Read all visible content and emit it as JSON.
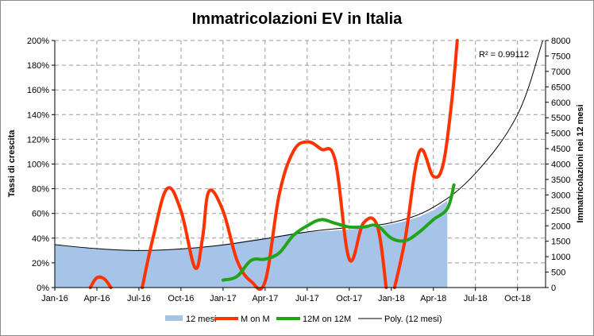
{
  "chart_data": {
    "type": "line",
    "title": "Immatricolazioni EV in Italia",
    "ylabel_left": "Tassi di crescita",
    "ylabel_right": "Immatricolazioni nei 12 mesi",
    "x_ticks": [
      "Jan-16",
      "Apr-16",
      "Jul-16",
      "Oct-16",
      "Jan-17",
      "Apr-17",
      "Jul-17",
      "Oct-17",
      "Jan-18",
      "Apr-18",
      "Jul-18",
      "Oct-18"
    ],
    "xlim": [
      "2016-01",
      "2018-12"
    ],
    "y_left_ticks": [
      "0%",
      "20%",
      "40%",
      "60%",
      "80%",
      "100%",
      "120%",
      "140%",
      "160%",
      "180%",
      "200%"
    ],
    "ylim_left": [
      0,
      200
    ],
    "y_right_ticks": [
      "0",
      "500",
      "1000",
      "1500",
      "2000",
      "2500",
      "3000",
      "3500",
      "4000",
      "4500",
      "5000",
      "5500",
      "6000",
      "6500",
      "7000",
      "7500",
      "8000"
    ],
    "ylim_right": [
      0,
      8000
    ],
    "grid": true,
    "legend_position": "bottom",
    "annotation": "R² = 0.99112",
    "series": [
      {
        "name": "12 mesi",
        "kind": "area",
        "axis": "right",
        "color": "#a6c4e8",
        "x": [
          "2016-01",
          "2016-02",
          "2016-03",
          "2016-04",
          "2016-05",
          "2016-06",
          "2016-07",
          "2016-08",
          "2016-09",
          "2016-10",
          "2016-11",
          "2016-12",
          "2017-01",
          "2017-02",
          "2017-03",
          "2017-04",
          "2017-05",
          "2017-06",
          "2017-07",
          "2017-08",
          "2017-09",
          "2017-10",
          "2017-11",
          "2017-12",
          "2018-01",
          "2018-02",
          "2018-03",
          "2018-04",
          "2018-05"
        ],
        "values": [
          1400,
          1350,
          1300,
          1260,
          1230,
          1210,
          1200,
          1210,
          1230,
          1260,
          1300,
          1340,
          1400,
          1470,
          1540,
          1600,
          1680,
          1740,
          1790,
          1820,
          1850,
          1880,
          1920,
          1970,
          2050,
          2150,
          2300,
          2500,
          2820
        ]
      },
      {
        "name": "M on M",
        "kind": "line",
        "axis": "left",
        "color": "#ff3300",
        "segments": [
          {
            "x": [
              "2016-03-17",
              "2016-04-01",
              "2016-04-17",
              "2016-05-01"
            ],
            "values": [
              0,
              8,
              7,
              0
            ]
          },
          {
            "x": [
              "2016-07-08",
              "2016-08-01",
              "2016-09-01",
              "2016-10-01",
              "2016-11-01",
              "2016-11-17",
              "2016-12-01",
              "2017-01-01",
              "2017-02-01",
              "2017-03-01",
              "2017-04-01",
              "2017-05-01",
              "2017-06-01",
              "2017-07-01",
              "2017-08-01",
              "2017-09-01",
              "2017-10-01",
              "2017-11-01",
              "2017-12-01",
              "2017-12-20"
            ],
            "values": [
              0,
              40,
              80,
              62,
              16,
              40,
              78,
              62,
              22,
              5,
              5,
              75,
              110,
              118,
              112,
              103,
              23,
              52,
              50,
              0
            ]
          },
          {
            "x": [
              "2018-01-08",
              "2018-02-01",
              "2018-03-01",
              "2018-04-01",
              "2018-04-22",
              "2018-05-10",
              "2018-05-22"
            ],
            "values": [
              0,
              40,
              110,
              90,
              100,
              150,
              200
            ]
          }
        ]
      },
      {
        "name": "12M on 12M",
        "kind": "line",
        "axis": "left",
        "color": "#22a319",
        "x": [
          "2017-01-01",
          "2017-02-01",
          "2017-03-01",
          "2017-04-01",
          "2017-05-01",
          "2017-06-01",
          "2017-07-01",
          "2017-08-01",
          "2017-09-01",
          "2017-10-01",
          "2017-11-01",
          "2017-12-01",
          "2018-01-01",
          "2018-02-01",
          "2018-03-01",
          "2018-04-01",
          "2018-05-01",
          "2018-05-15"
        ],
        "values": [
          6,
          9,
          22,
          23,
          28,
          42,
          50,
          55,
          52,
          49,
          49,
          50,
          40,
          38,
          45,
          55,
          64,
          83
        ]
      },
      {
        "name": "Poly. (12 mesi)",
        "kind": "trendline",
        "axis": "right",
        "color": "#000000",
        "x": [
          "2016-01",
          "2016-04",
          "2016-07",
          "2016-10",
          "2017-01",
          "2017-04",
          "2017-07",
          "2017-10",
          "2018-01",
          "2018-04",
          "2018-07",
          "2018-10",
          "2018-11-25"
        ],
        "values": [
          1390,
          1260,
          1200,
          1250,
          1380,
          1580,
          1800,
          1950,
          2100,
          2600,
          3700,
          5600,
          8000
        ]
      }
    ]
  }
}
